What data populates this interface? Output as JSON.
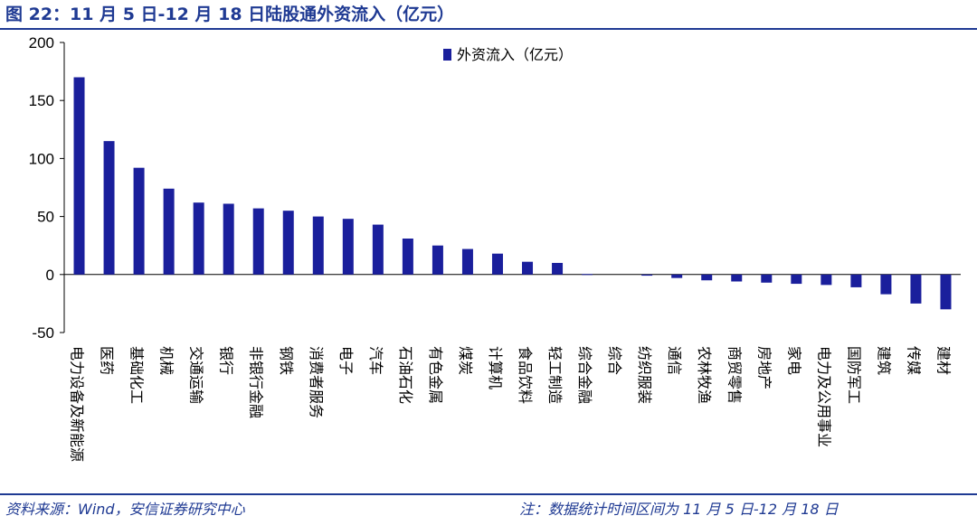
{
  "header": {
    "title": "图 22：11 月 5 日-12 月 18 日陆股通外资流入（亿元）"
  },
  "footer": {
    "source": "资料来源：Wind，安信证券研究中心",
    "note": "注：数据统计时间区间为 11 月 5 日-12 月 18 日"
  },
  "colors": {
    "bar": "#1a1f9c",
    "title": "#1f3a93"
  },
  "chart_data": {
    "type": "bar",
    "categories": [
      "电力设备及新能源",
      "医药",
      "基础化工",
      "机械",
      "交通运输",
      "银行",
      "非银行金融",
      "钢铁",
      "消费者服务",
      "电子",
      "汽车",
      "石油石化",
      "有色金属",
      "煤炭",
      "计算机",
      "食品饮料",
      "轻工制造",
      "综合金融",
      "综合",
      "纺织服装",
      "通信",
      "农林牧渔",
      "商贸零售",
      "房地产",
      "家电",
      "电力及公用事业",
      "国防军工",
      "建筑",
      "传媒",
      "建材"
    ],
    "series": [
      {
        "name": "外资流入（亿元）",
        "values": [
          170,
          115,
          92,
          74,
          62,
          61,
          57,
          55,
          50,
          48,
          43,
          31,
          25,
          22,
          18,
          11,
          10,
          0.5,
          0,
          -1,
          -3,
          -5,
          -6,
          -7,
          -8,
          -9,
          -11,
          -17,
          -25,
          -30
        ]
      }
    ],
    "xlabel": "",
    "ylabel": "",
    "ylim": [
      -50,
      200
    ],
    "yticks": [
      -50,
      0,
      50,
      100,
      150,
      200
    ],
    "grid": false,
    "legend_position": "top-center"
  }
}
